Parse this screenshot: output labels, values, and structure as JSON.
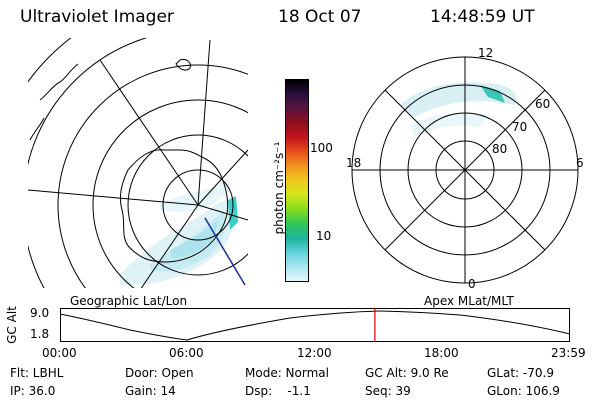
{
  "header": {
    "instrument": "Ultraviolet Imager",
    "date": "18 Oct 07",
    "time": "14:48:59 UT"
  },
  "geo_map": {
    "caption": "Geographic Lat/Lon"
  },
  "colorbar": {
    "unit_label": "photon cm⁻²s⁻¹",
    "ticks": [
      "100",
      "10"
    ],
    "colors": [
      "#000000",
      "#2a0f3c",
      "#5a1440",
      "#8c0f1e",
      "#c8141e",
      "#e8521a",
      "#f0961e",
      "#f0c81e",
      "#d2e61e",
      "#8cdc1e",
      "#32c850",
      "#1eb4a0",
      "#64d2dc",
      "#aae6f0",
      "#e6f5fa"
    ]
  },
  "polar_plot": {
    "caption": "Apex MLat/MLT",
    "mlt_labels": {
      "top": "12",
      "right": "6",
      "bottom": "0",
      "left": "18"
    },
    "lat_labels": [
      "60",
      "70",
      "80"
    ]
  },
  "altitude_panel": {
    "axis_label": "GC Alt",
    "y_ticks": [
      "9.0",
      "1.8"
    ],
    "x_ticks": [
      "00:00",
      "06:00",
      "12:00",
      "18:00",
      "23:59"
    ],
    "marker_time": "14:48:59",
    "marker_color": "#e00000"
  },
  "info": {
    "filter": "Flt: LBHL",
    "door": "Door: Open",
    "mode": "Mode: Normal",
    "gc_alt": "GC Alt: 9.0 Re",
    "glat": "GLat: -70.9",
    "ip": "IP: 36.0",
    "gain": "Gain: 14",
    "dsp": "Dsp:    -1.1",
    "seq": "Seq: 39",
    "glon": "GLon: 106.9"
  }
}
